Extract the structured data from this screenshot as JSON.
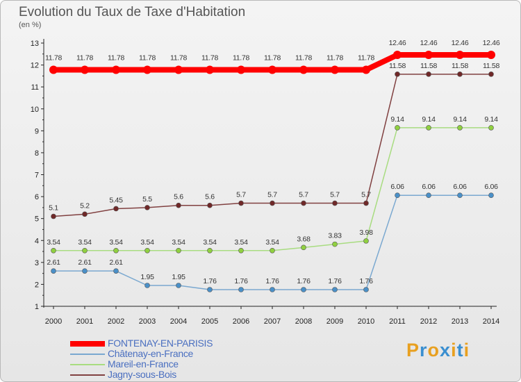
{
  "title": "Evolution du Taux de Taxe d'Habitation",
  "unit_label": "(en %)",
  "logo": {
    "letters": [
      {
        "ch": "P",
        "color": "#e8a020"
      },
      {
        "ch": "r",
        "color": "#3a8fd0"
      },
      {
        "ch": "o",
        "color": "#e8a020"
      },
      {
        "ch": "x",
        "color": "#3a8fd0"
      },
      {
        "ch": "i",
        "color": "#e8a020"
      },
      {
        "ch": "t",
        "color": "#3a8fd0"
      },
      {
        "ch": "i",
        "color": "#e8a020"
      }
    ]
  },
  "chart_data": {
    "type": "line",
    "x": [
      2000,
      2001,
      2002,
      2003,
      2004,
      2005,
      2006,
      2007,
      2008,
      2009,
      2010,
      2011,
      2012,
      2013,
      2014
    ],
    "ylim": [
      1,
      13
    ],
    "yticks": [
      1,
      2,
      3,
      4,
      5,
      6,
      7,
      8,
      9,
      10,
      11,
      12,
      13
    ],
    "grid": false,
    "legend_position": "bottom-left",
    "series": [
      {
        "name": "FONTENAY-EN-PARISIS",
        "color": "#ff0000",
        "stroke": "#ff0000",
        "width": 8,
        "r": 6,
        "values": [
          11.78,
          11.78,
          11.78,
          11.78,
          11.78,
          11.78,
          11.78,
          11.78,
          11.78,
          11.78,
          11.78,
          12.46,
          12.46,
          12.46,
          12.46
        ],
        "labels": [
          "11.78",
          "11.78",
          "11.78",
          "11.78",
          "11.78",
          "11.78",
          "11.78",
          "11.78",
          "11.78",
          "11.78",
          "11.78",
          "12.46",
          "12.46",
          "12.46",
          "12.46"
        ]
      },
      {
        "name": "Châtenay-en-France",
        "color": "#4a90c8",
        "stroke": "#7aa8d0",
        "width": 1.5,
        "r": 3.5,
        "values": [
          2.61,
          2.61,
          2.61,
          1.95,
          1.95,
          1.76,
          1.76,
          1.76,
          1.76,
          1.76,
          1.76,
          6.06,
          6.06,
          6.06,
          6.06
        ],
        "labels": [
          "2.61",
          "2.61",
          "2.61",
          "1.95",
          "1.95",
          "1.76",
          "1.76",
          "1.76",
          "1.76",
          "1.76",
          "1.76",
          "6.06",
          "6.06",
          "6.06",
          "6.06"
        ]
      },
      {
        "name": "Mareil-en-France",
        "color": "#90d040",
        "stroke": "#a8dc80",
        "width": 1.5,
        "r": 3.5,
        "values": [
          3.54,
          3.54,
          3.54,
          3.54,
          3.54,
          3.54,
          3.54,
          3.54,
          3.68,
          3.83,
          3.98,
          9.14,
          9.14,
          9.14,
          9.14
        ],
        "labels": [
          "3.54",
          "3.54",
          "3.54",
          "3.54",
          "3.54",
          "3.54",
          "3.54",
          "3.54",
          "3.68",
          "3.83",
          "3.98",
          "9.14",
          "9.14",
          "9.14",
          "9.14"
        ]
      },
      {
        "name": "Jagny-sous-Bois",
        "color": "#702828",
        "stroke": "#804040",
        "width": 1.5,
        "r": 3.5,
        "values": [
          5.1,
          5.2,
          5.45,
          5.5,
          5.6,
          5.6,
          5.7,
          5.7,
          5.7,
          5.7,
          5.7,
          11.58,
          11.58,
          11.58,
          11.58
        ],
        "labels": [
          "5.1",
          "5.2",
          "5.45",
          "5.5",
          "5.6",
          "5.6",
          "5.7",
          "5.7",
          "5.7",
          "5.7",
          "5.7",
          "11.58",
          "11.58",
          "11.58",
          "11.58"
        ]
      }
    ]
  }
}
